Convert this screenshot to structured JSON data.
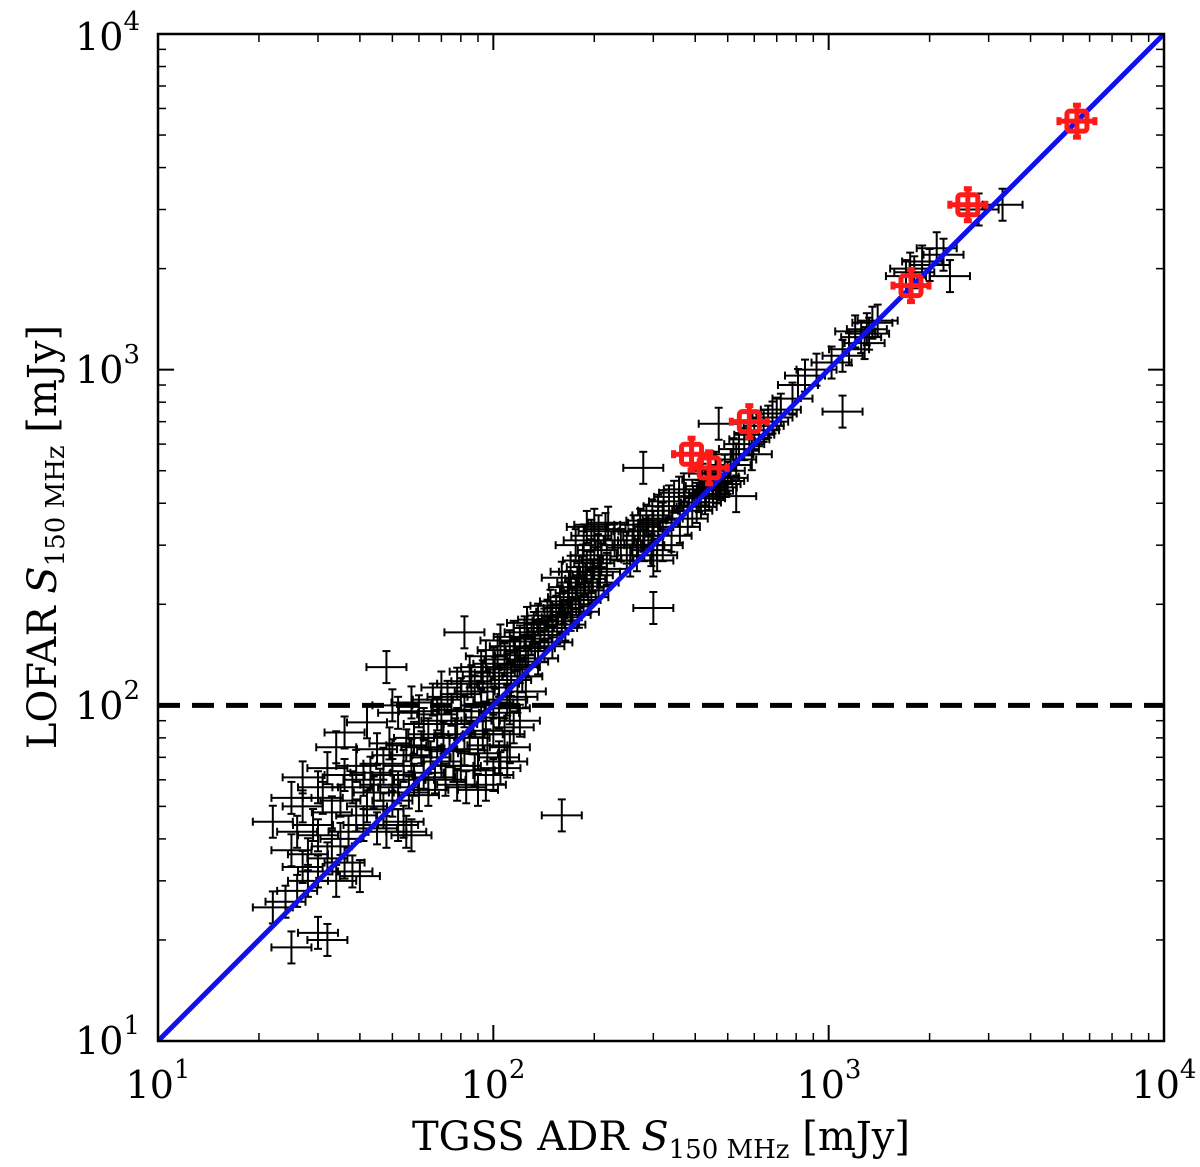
{
  "chart_data": {
    "type": "scatter",
    "x_scale": "log",
    "y_scale": "log",
    "xlim": [
      10,
      10000
    ],
    "ylim": [
      10,
      10000
    ],
    "x_ticks": [
      {
        "base": "10",
        "exp": "1"
      },
      {
        "base": "10",
        "exp": "2"
      },
      {
        "base": "10",
        "exp": "3"
      },
      {
        "base": "10",
        "exp": "4"
      }
    ],
    "y_ticks": [
      {
        "base": "10",
        "exp": "1"
      },
      {
        "base": "10",
        "exp": "2"
      },
      {
        "base": "10",
        "exp": "3"
      },
      {
        "base": "10",
        "exp": "4"
      }
    ],
    "xlabel": {
      "prefix": "TGSS ADR ",
      "symbol": "S",
      "subscript": "150 MHz",
      "unit": " [mJy]"
    },
    "ylabel": {
      "prefix": "LOFAR ",
      "symbol": "S",
      "subscript": "150 MHz",
      "unit": " [mJy]"
    },
    "reference_line": {
      "type": "one-to-one",
      "x": [
        10,
        10000
      ],
      "y": [
        10,
        10000
      ],
      "color": "#1010ee"
    },
    "threshold_line": {
      "style": "dashed",
      "y": 100,
      "color": "#000000"
    },
    "series": [
      {
        "name": "sources",
        "color": "#000000",
        "points": [
          [
            25,
            19
          ],
          [
            30,
            21
          ],
          [
            32,
            20
          ],
          [
            24,
            26
          ],
          [
            22,
            25
          ],
          [
            26,
            28
          ],
          [
            28,
            30
          ],
          [
            27,
            33
          ],
          [
            30,
            32
          ],
          [
            32,
            35
          ],
          [
            28,
            36
          ],
          [
            25,
            37
          ],
          [
            34,
            30
          ],
          [
            38,
            32
          ],
          [
            40,
            31
          ],
          [
            36,
            34
          ],
          [
            33,
            38
          ],
          [
            35,
            40
          ],
          [
            30,
            41
          ],
          [
            26,
            42
          ],
          [
            22,
            45
          ],
          [
            29,
            44
          ],
          [
            37,
            42
          ],
          [
            41,
            44
          ],
          [
            45,
            43
          ],
          [
            48,
            42
          ],
          [
            52,
            44
          ],
          [
            55,
            42
          ],
          [
            39,
            47
          ],
          [
            33,
            48
          ],
          [
            27,
            50
          ],
          [
            25,
            53
          ],
          [
            31,
            53
          ],
          [
            35,
            52
          ],
          [
            42,
            50
          ],
          [
            47,
            49
          ],
          [
            50,
            52
          ],
          [
            44,
            55
          ],
          [
            38,
            57
          ],
          [
            30,
            57
          ],
          [
            41,
            60
          ],
          [
            46,
            58
          ],
          [
            52,
            57
          ],
          [
            56,
            55
          ],
          [
            60,
            54
          ],
          [
            64,
            56
          ],
          [
            58,
            60
          ],
          [
            50,
            62
          ],
          [
            43,
            63
          ],
          [
            36,
            62
          ],
          [
            39,
            66
          ],
          [
            47,
            67
          ],
          [
            54,
            66
          ],
          [
            62,
            63
          ],
          [
            67,
            61
          ],
          [
            72,
            60
          ],
          [
            78,
            58
          ],
          [
            83,
            57
          ],
          [
            90,
            56
          ],
          [
            95,
            58
          ],
          [
            100,
            62
          ],
          [
            105,
            65
          ],
          [
            110,
            68
          ],
          [
            88,
            64
          ],
          [
            80,
            66
          ],
          [
            70,
            68
          ],
          [
            65,
            70
          ],
          [
            57,
            71
          ],
          [
            50,
            71
          ],
          [
            45,
            74
          ],
          [
            49,
            77
          ],
          [
            55,
            76
          ],
          [
            61,
            75
          ],
          [
            68,
            74
          ],
          [
            74,
            73
          ],
          [
            82,
            74
          ],
          [
            90,
            72
          ],
          [
            96,
            76
          ],
          [
            104,
            70
          ],
          [
            112,
            75
          ],
          [
            58,
            80
          ],
          [
            64,
            82
          ],
          [
            71,
            80
          ],
          [
            77,
            82
          ],
          [
            85,
            80
          ],
          [
            93,
            82
          ],
          [
            100,
            84
          ],
          [
            108,
            82
          ],
          [
            115,
            86
          ],
          [
            120,
            90
          ],
          [
            62,
            88
          ],
          [
            70,
            90
          ],
          [
            78,
            88
          ],
          [
            86,
            90
          ],
          [
            95,
            92
          ],
          [
            104,
            95
          ],
          [
            112,
            98
          ],
          [
            68,
            94
          ],
          [
            75,
            97
          ],
          [
            82,
            96
          ],
          [
            92,
            100
          ],
          [
            100,
            102
          ],
          [
            110,
            104
          ],
          [
            118,
            106
          ],
          [
            125,
            110
          ],
          [
            60,
            96
          ],
          [
            50,
            100
          ],
          [
            57,
            102
          ],
          [
            66,
            104
          ],
          [
            73,
            106
          ],
          [
            80,
            108
          ],
          [
            88,
            110
          ],
          [
            96,
            113
          ],
          [
            104,
            116
          ],
          [
            113,
            119
          ],
          [
            122,
            122
          ],
          [
            70,
            113
          ],
          [
            78,
            116
          ],
          [
            86,
            118
          ],
          [
            93,
            122
          ],
          [
            101,
            125
          ],
          [
            110,
            128
          ],
          [
            118,
            132
          ],
          [
            127,
            135
          ],
          [
            136,
            138
          ],
          [
            85,
            126
          ],
          [
            92,
            130
          ],
          [
            100,
            133
          ],
          [
            108,
            137
          ],
          [
            116,
            141
          ],
          [
            125,
            145
          ],
          [
            133,
            148
          ],
          [
            142,
            150
          ],
          [
            150,
            154
          ],
          [
            95,
            140
          ],
          [
            103,
            146
          ],
          [
            112,
            150
          ],
          [
            120,
            155
          ],
          [
            130,
            158
          ],
          [
            138,
            162
          ],
          [
            146,
            166
          ],
          [
            155,
            170
          ],
          [
            164,
            174
          ],
          [
            105,
            156
          ],
          [
            115,
            160
          ],
          [
            124,
            165
          ],
          [
            132,
            170
          ],
          [
            142,
            174
          ],
          [
            150,
            178
          ],
          [
            160,
            183
          ],
          [
            170,
            186
          ],
          [
            180,
            190
          ],
          [
            126,
            176
          ],
          [
            136,
            180
          ],
          [
            145,
            185
          ],
          [
            154,
            190
          ],
          [
            162,
            195
          ],
          [
            172,
            200
          ],
          [
            182,
            206
          ],
          [
            192,
            210
          ],
          [
            148,
            198
          ],
          [
            158,
            204
          ],
          [
            167,
            210
          ],
          [
            176,
            216
          ],
          [
            186,
            220
          ],
          [
            196,
            226
          ],
          [
            206,
            232
          ],
          [
            168,
            225
          ],
          [
            178,
            232
          ],
          [
            188,
            238
          ],
          [
            198,
            244
          ],
          [
            208,
            250
          ],
          [
            218,
            255
          ],
          [
            180,
            250
          ],
          [
            190,
            258
          ],
          [
            200,
            265
          ],
          [
            210,
            272
          ],
          [
            160,
            240
          ],
          [
            170,
            250
          ],
          [
            185,
            270
          ],
          [
            195,
            280
          ],
          [
            205,
            290
          ],
          [
            176,
            300
          ],
          [
            186,
            310
          ],
          [
            196,
            320
          ],
          [
            206,
            330
          ],
          [
            216,
            335
          ],
          [
            190,
            340
          ],
          [
            200,
            345
          ],
          [
            220,
            350
          ],
          [
            230,
            310
          ],
          [
            240,
            300
          ],
          [
            250,
            295
          ],
          [
            260,
            300
          ],
          [
            270,
            310
          ],
          [
            280,
            320
          ],
          [
            290,
            330
          ],
          [
            300,
            340
          ],
          [
            310,
            350
          ],
          [
            320,
            360
          ],
          [
            262,
            330
          ],
          [
            274,
            345
          ],
          [
            286,
            355
          ],
          [
            298,
            368
          ],
          [
            310,
            380
          ],
          [
            322,
            392
          ],
          [
            334,
            405
          ],
          [
            346,
            418
          ],
          [
            358,
            430
          ],
          [
            370,
            440
          ],
          [
            282,
            300
          ],
          [
            296,
            290
          ],
          [
            308,
            280
          ],
          [
            268,
            280
          ],
          [
            256,
            270
          ],
          [
            300,
            270
          ],
          [
            320,
            300
          ],
          [
            340,
            320
          ],
          [
            360,
            340
          ],
          [
            380,
            360
          ],
          [
            392,
            380
          ],
          [
            404,
            390
          ],
          [
            416,
            402
          ],
          [
            428,
            414
          ],
          [
            440,
            426
          ],
          [
            452,
            436
          ],
          [
            464,
            446
          ],
          [
            476,
            456
          ],
          [
            488,
            466
          ],
          [
            500,
            476
          ],
          [
            410,
            420
          ],
          [
            430,
            440
          ],
          [
            450,
            460
          ],
          [
            470,
            480
          ],
          [
            490,
            500
          ],
          [
            510,
            520
          ],
          [
            530,
            540
          ],
          [
            420,
            470
          ],
          [
            440,
            490
          ],
          [
            460,
            510
          ],
          [
            520,
            560
          ],
          [
            540,
            580
          ],
          [
            560,
            600
          ],
          [
            580,
            620
          ],
          [
            600,
            640
          ],
          [
            620,
            660
          ],
          [
            640,
            680
          ],
          [
            660,
            700
          ],
          [
            680,
            720
          ],
          [
            700,
            740
          ],
          [
            280,
            510
          ],
          [
            470,
            690
          ],
          [
            430,
            450
          ],
          [
            530,
            420
          ],
          [
            590,
            560
          ],
          [
            720,
            760
          ],
          [
            780,
            820
          ],
          [
            810,
            900
          ],
          [
            850,
            960
          ],
          [
            920,
            1000
          ],
          [
            1020,
            1050
          ],
          [
            1100,
            1100
          ],
          [
            1150,
            1150
          ],
          [
            1250,
            1250
          ],
          [
            1300,
            1320
          ],
          [
            1350,
            1380
          ],
          [
            1280,
            1200
          ],
          [
            1200,
            1300
          ],
          [
            1400,
            1400
          ],
          [
            1320,
            1280
          ],
          [
            1700,
            1900
          ],
          [
            1800,
            1950
          ],
          [
            1900,
            2100
          ],
          [
            2000,
            2050
          ],
          [
            2100,
            2300
          ],
          [
            2200,
            2200
          ],
          [
            2300,
            1900
          ],
          [
            1750,
            2000
          ],
          [
            3300,
            3100
          ],
          [
            2800,
            3000
          ],
          [
            300,
            195
          ],
          [
            1100,
            750
          ],
          [
            160,
            47
          ],
          [
            48,
            130
          ],
          [
            82,
            165
          ],
          [
            36,
            83
          ],
          [
            27,
            61
          ],
          [
            32,
            65
          ],
          [
            34,
            75
          ],
          [
            42,
            89
          ],
          [
            52,
            95
          ],
          [
            54,
            45
          ],
          [
            57,
            41
          ],
          [
            76,
            66
          ],
          [
            120,
            130
          ]
        ]
      },
      {
        "name": "highlighted",
        "color": "#ff1a1a",
        "points": [
          [
            390,
            560
          ],
          [
            440,
            510
          ],
          [
            580,
            700
          ],
          [
            1760,
            1780
          ],
          [
            2600,
            3100
          ],
          [
            5500,
            5500
          ]
        ]
      }
    ]
  }
}
